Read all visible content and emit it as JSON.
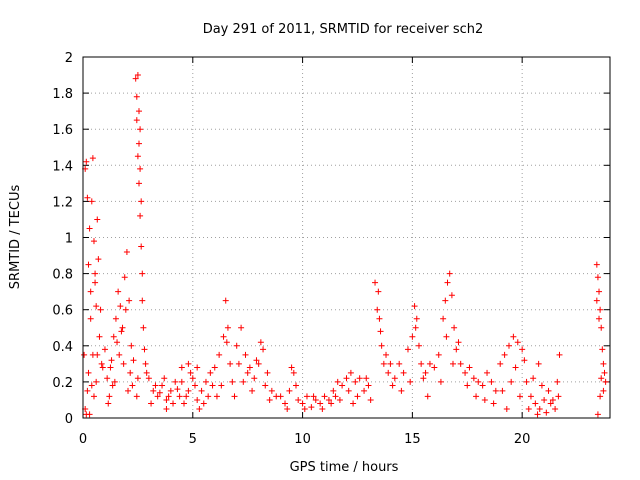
{
  "chart_data": {
    "type": "scatter",
    "title": "Day 291 of 2011, SRMTID for receiver sch2",
    "xlabel": "GPS time / hours",
    "ylabel": "SRMTID / TECUs",
    "xlim": [
      0,
      24
    ],
    "ylim": [
      0,
      2
    ],
    "xticks": [
      0,
      5,
      10,
      15,
      20
    ],
    "xtick_labels": [
      "0",
      "5",
      "10",
      "15",
      "20"
    ],
    "yticks": [
      0,
      0.2,
      0.4,
      0.6,
      0.8,
      1,
      1.2,
      1.4,
      1.6,
      1.8,
      2
    ],
    "ytick_labels": [
      "0",
      "0.2",
      "0.4",
      "0.6",
      "0.8",
      "1",
      "1.2",
      "1.4",
      "1.6",
      "1.8",
      "2"
    ],
    "grid": true,
    "marker": "+",
    "color": "#ff0000",
    "series": [
      {
        "points": [
          [
            0.05,
            0.35
          ],
          [
            0.1,
            1.38
          ],
          [
            0.15,
            1.42
          ],
          [
            0.2,
            1.22
          ],
          [
            0.25,
            0.85
          ],
          [
            0.3,
            1.05
          ],
          [
            0.35,
            0.55
          ],
          [
            0.4,
            1.2
          ],
          [
            0.45,
            1.44
          ],
          [
            0.5,
            0.98
          ],
          [
            0.55,
            0.75
          ],
          [
            0.6,
            0.62
          ],
          [
            0.65,
            1.1
          ],
          [
            0.7,
            0.88
          ],
          [
            0.75,
            0.45
          ],
          [
            0.8,
            0.6
          ],
          [
            0.85,
            0.3
          ],
          [
            0.1,
            0.05
          ],
          [
            0.3,
            0.02
          ],
          [
            0.2,
            0.15
          ],
          [
            0.5,
            0.12
          ],
          [
            0.6,
            0.2
          ],
          [
            0.45,
            0.35
          ],
          [
            0.55,
            0.8
          ],
          [
            0.35,
            0.7
          ],
          [
            0.25,
            0.25
          ],
          [
            0.15,
            0.02
          ],
          [
            0.4,
            0.18
          ],
          [
            0.65,
            0.35
          ],
          [
            0.9,
            0.28
          ],
          [
            1.0,
            0.38
          ],
          [
            1.1,
            0.22
          ],
          [
            1.2,
            0.12
          ],
          [
            1.3,
            0.32
          ],
          [
            1.4,
            0.45
          ],
          [
            1.5,
            0.55
          ],
          [
            1.6,
            0.7
          ],
          [
            1.7,
            0.62
          ],
          [
            1.8,
            0.5
          ],
          [
            1.9,
            0.78
          ],
          [
            2.0,
            0.92
          ],
          [
            2.1,
            0.65
          ],
          [
            2.2,
            0.4
          ],
          [
            1.25,
            0.28
          ],
          [
            1.45,
            0.2
          ],
          [
            1.65,
            0.35
          ],
          [
            1.85,
            0.3
          ],
          [
            2.05,
            0.15
          ],
          [
            2.15,
            0.25
          ],
          [
            1.15,
            0.08
          ],
          [
            1.35,
            0.18
          ],
          [
            1.55,
            0.42
          ],
          [
            1.75,
            0.48
          ],
          [
            1.95,
            0.6
          ],
          [
            2.25,
            0.18
          ],
          [
            2.3,
            0.32
          ],
          [
            2.4,
            1.88
          ],
          [
            2.45,
            1.78
          ],
          [
            2.5,
            1.9
          ],
          [
            2.55,
            1.7
          ],
          [
            2.6,
            1.6
          ],
          [
            2.5,
            1.45
          ],
          [
            2.55,
            1.3
          ],
          [
            2.6,
            1.12
          ],
          [
            2.65,
            0.95
          ],
          [
            2.7,
            0.8
          ],
          [
            2.45,
            1.65
          ],
          [
            2.55,
            1.52
          ],
          [
            2.6,
            1.38
          ],
          [
            2.65,
            1.2
          ],
          [
            2.7,
            0.65
          ],
          [
            2.75,
            0.5
          ],
          [
            2.8,
            0.38
          ],
          [
            2.85,
            0.3
          ],
          [
            2.9,
            0.25
          ],
          [
            2.5,
            0.22
          ],
          [
            2.45,
            0.12
          ],
          [
            3.0,
            0.22
          ],
          [
            3.2,
            0.15
          ],
          [
            3.4,
            0.12
          ],
          [
            3.6,
            0.18
          ],
          [
            3.8,
            0.1
          ],
          [
            4.0,
            0.15
          ],
          [
            4.2,
            0.2
          ],
          [
            4.4,
            0.12
          ],
          [
            4.6,
            0.08
          ],
          [
            4.8,
            0.15
          ],
          [
            5.0,
            0.22
          ],
          [
            5.2,
            0.1
          ],
          [
            5.4,
            0.15
          ],
          [
            5.6,
            0.2
          ],
          [
            5.8,
            0.25
          ],
          [
            3.1,
            0.08
          ],
          [
            3.3,
            0.18
          ],
          [
            3.5,
            0.14
          ],
          [
            3.7,
            0.22
          ],
          [
            3.9,
            0.12
          ],
          [
            4.1,
            0.08
          ],
          [
            4.3,
            0.16
          ],
          [
            4.5,
            0.2
          ],
          [
            4.7,
            0.12
          ],
          [
            4.9,
            0.25
          ],
          [
            5.1,
            0.18
          ],
          [
            5.3,
            0.05
          ],
          [
            5.5,
            0.08
          ],
          [
            5.7,
            0.12
          ],
          [
            5.9,
            0.18
          ],
          [
            4.5,
            0.28
          ],
          [
            4.8,
            0.3
          ],
          [
            5.2,
            0.28
          ],
          [
            3.8,
            0.05
          ],
          [
            6.0,
            0.28
          ],
          [
            6.2,
            0.35
          ],
          [
            6.4,
            0.45
          ],
          [
            6.5,
            0.65
          ],
          [
            6.6,
            0.5
          ],
          [
            6.7,
            0.3
          ],
          [
            6.8,
            0.2
          ],
          [
            7.0,
            0.4
          ],
          [
            7.2,
            0.5
          ],
          [
            7.4,
            0.35
          ],
          [
            7.6,
            0.28
          ],
          [
            7.8,
            0.22
          ],
          [
            8.0,
            0.3
          ],
          [
            8.2,
            0.38
          ],
          [
            8.4,
            0.25
          ],
          [
            8.6,
            0.15
          ],
          [
            8.8,
            0.12
          ],
          [
            6.3,
            0.18
          ],
          [
            6.9,
            0.12
          ],
          [
            7.3,
            0.2
          ],
          [
            7.7,
            0.15
          ],
          [
            8.1,
            0.42
          ],
          [
            8.3,
            0.18
          ],
          [
            6.55,
            0.42
          ],
          [
            7.1,
            0.3
          ],
          [
            7.5,
            0.25
          ],
          [
            6.1,
            0.12
          ],
          [
            7.9,
            0.32
          ],
          [
            8.5,
            0.1
          ],
          [
            9.0,
            0.12
          ],
          [
            9.2,
            0.08
          ],
          [
            9.4,
            0.15
          ],
          [
            9.6,
            0.25
          ],
          [
            9.8,
            0.1
          ],
          [
            10.0,
            0.08
          ],
          [
            10.2,
            0.12
          ],
          [
            10.4,
            0.06
          ],
          [
            10.6,
            0.1
          ],
          [
            10.8,
            0.08
          ],
          [
            11.0,
            0.12
          ],
          [
            11.2,
            0.1
          ],
          [
            11.4,
            0.15
          ],
          [
            11.6,
            0.2
          ],
          [
            11.8,
            0.18
          ],
          [
            12.0,
            0.22
          ],
          [
            12.2,
            0.25
          ],
          [
            12.4,
            0.2
          ],
          [
            12.6,
            0.22
          ],
          [
            12.8,
            0.15
          ],
          [
            13.0,
            0.18
          ],
          [
            9.3,
            0.05
          ],
          [
            9.7,
            0.18
          ],
          [
            10.1,
            0.05
          ],
          [
            10.5,
            0.12
          ],
          [
            10.9,
            0.05
          ],
          [
            11.3,
            0.08
          ],
          [
            11.7,
            0.1
          ],
          [
            12.1,
            0.15
          ],
          [
            12.5,
            0.12
          ],
          [
            12.9,
            0.22
          ],
          [
            13.1,
            0.1
          ],
          [
            9.5,
            0.28
          ],
          [
            11.5,
            0.12
          ],
          [
            12.3,
            0.08
          ],
          [
            13.3,
            0.75
          ],
          [
            13.4,
            0.6
          ],
          [
            13.5,
            0.55
          ],
          [
            13.6,
            0.4
          ],
          [
            13.7,
            0.3
          ],
          [
            13.8,
            0.35
          ],
          [
            13.9,
            0.25
          ],
          [
            14.0,
            0.3
          ],
          [
            14.2,
            0.22
          ],
          [
            14.4,
            0.3
          ],
          [
            14.6,
            0.25
          ],
          [
            14.8,
            0.38
          ],
          [
            15.0,
            0.45
          ],
          [
            15.1,
            0.62
          ],
          [
            15.2,
            0.55
          ],
          [
            15.3,
            0.4
          ],
          [
            15.4,
            0.3
          ],
          [
            15.6,
            0.25
          ],
          [
            15.8,
            0.3
          ],
          [
            13.45,
            0.7
          ],
          [
            13.55,
            0.48
          ],
          [
            14.1,
            0.18
          ],
          [
            14.5,
            0.15
          ],
          [
            14.9,
            0.2
          ],
          [
            15.15,
            0.5
          ],
          [
            15.5,
            0.22
          ],
          [
            15.7,
            0.12
          ],
          [
            16.0,
            0.28
          ],
          [
            16.2,
            0.35
          ],
          [
            16.4,
            0.55
          ],
          [
            16.5,
            0.65
          ],
          [
            16.6,
            0.75
          ],
          [
            16.7,
            0.8
          ],
          [
            16.8,
            0.68
          ],
          [
            16.9,
            0.5
          ],
          [
            17.0,
            0.38
          ],
          [
            17.2,
            0.3
          ],
          [
            17.4,
            0.25
          ],
          [
            17.6,
            0.28
          ],
          [
            17.8,
            0.22
          ],
          [
            18.0,
            0.2
          ],
          [
            18.2,
            0.18
          ],
          [
            18.4,
            0.25
          ],
          [
            18.6,
            0.2
          ],
          [
            18.8,
            0.15
          ],
          [
            16.3,
            0.2
          ],
          [
            16.55,
            0.45
          ],
          [
            16.85,
            0.3
          ],
          [
            17.1,
            0.42
          ],
          [
            17.5,
            0.18
          ],
          [
            17.9,
            0.12
          ],
          [
            18.3,
            0.1
          ],
          [
            18.7,
            0.08
          ],
          [
            19.0,
            0.3
          ],
          [
            19.2,
            0.35
          ],
          [
            19.4,
            0.4
          ],
          [
            19.6,
            0.45
          ],
          [
            19.8,
            0.42
          ],
          [
            20.0,
            0.38
          ],
          [
            20.2,
            0.2
          ],
          [
            20.4,
            0.12
          ],
          [
            20.6,
            0.08
          ],
          [
            20.8,
            0.05
          ],
          [
            21.0,
            0.1
          ],
          [
            21.2,
            0.15
          ],
          [
            21.4,
            0.1
          ],
          [
            21.6,
            0.2
          ],
          [
            21.7,
            0.35
          ],
          [
            19.1,
            0.15
          ],
          [
            19.3,
            0.05
          ],
          [
            19.5,
            0.2
          ],
          [
            19.7,
            0.28
          ],
          [
            19.9,
            0.12
          ],
          [
            20.1,
            0.32
          ],
          [
            20.3,
            0.05
          ],
          [
            20.5,
            0.22
          ],
          [
            20.7,
            0.02
          ],
          [
            20.9,
            0.18
          ],
          [
            21.1,
            0.03
          ],
          [
            21.3,
            0.08
          ],
          [
            21.5,
            0.05
          ],
          [
            21.65,
            0.12
          ],
          [
            20.75,
            0.3
          ],
          [
            23.4,
            0.85
          ],
          [
            23.45,
            0.78
          ],
          [
            23.5,
            0.7
          ],
          [
            23.55,
            0.6
          ],
          [
            23.6,
            0.5
          ],
          [
            23.65,
            0.38
          ],
          [
            23.7,
            0.3
          ],
          [
            23.75,
            0.25
          ],
          [
            23.8,
            0.2
          ],
          [
            23.5,
            0.55
          ],
          [
            23.55,
            0.12
          ],
          [
            23.45,
            0.02
          ],
          [
            23.6,
            0.22
          ],
          [
            23.7,
            0.15
          ],
          [
            23.4,
            0.65
          ]
        ]
      }
    ]
  }
}
